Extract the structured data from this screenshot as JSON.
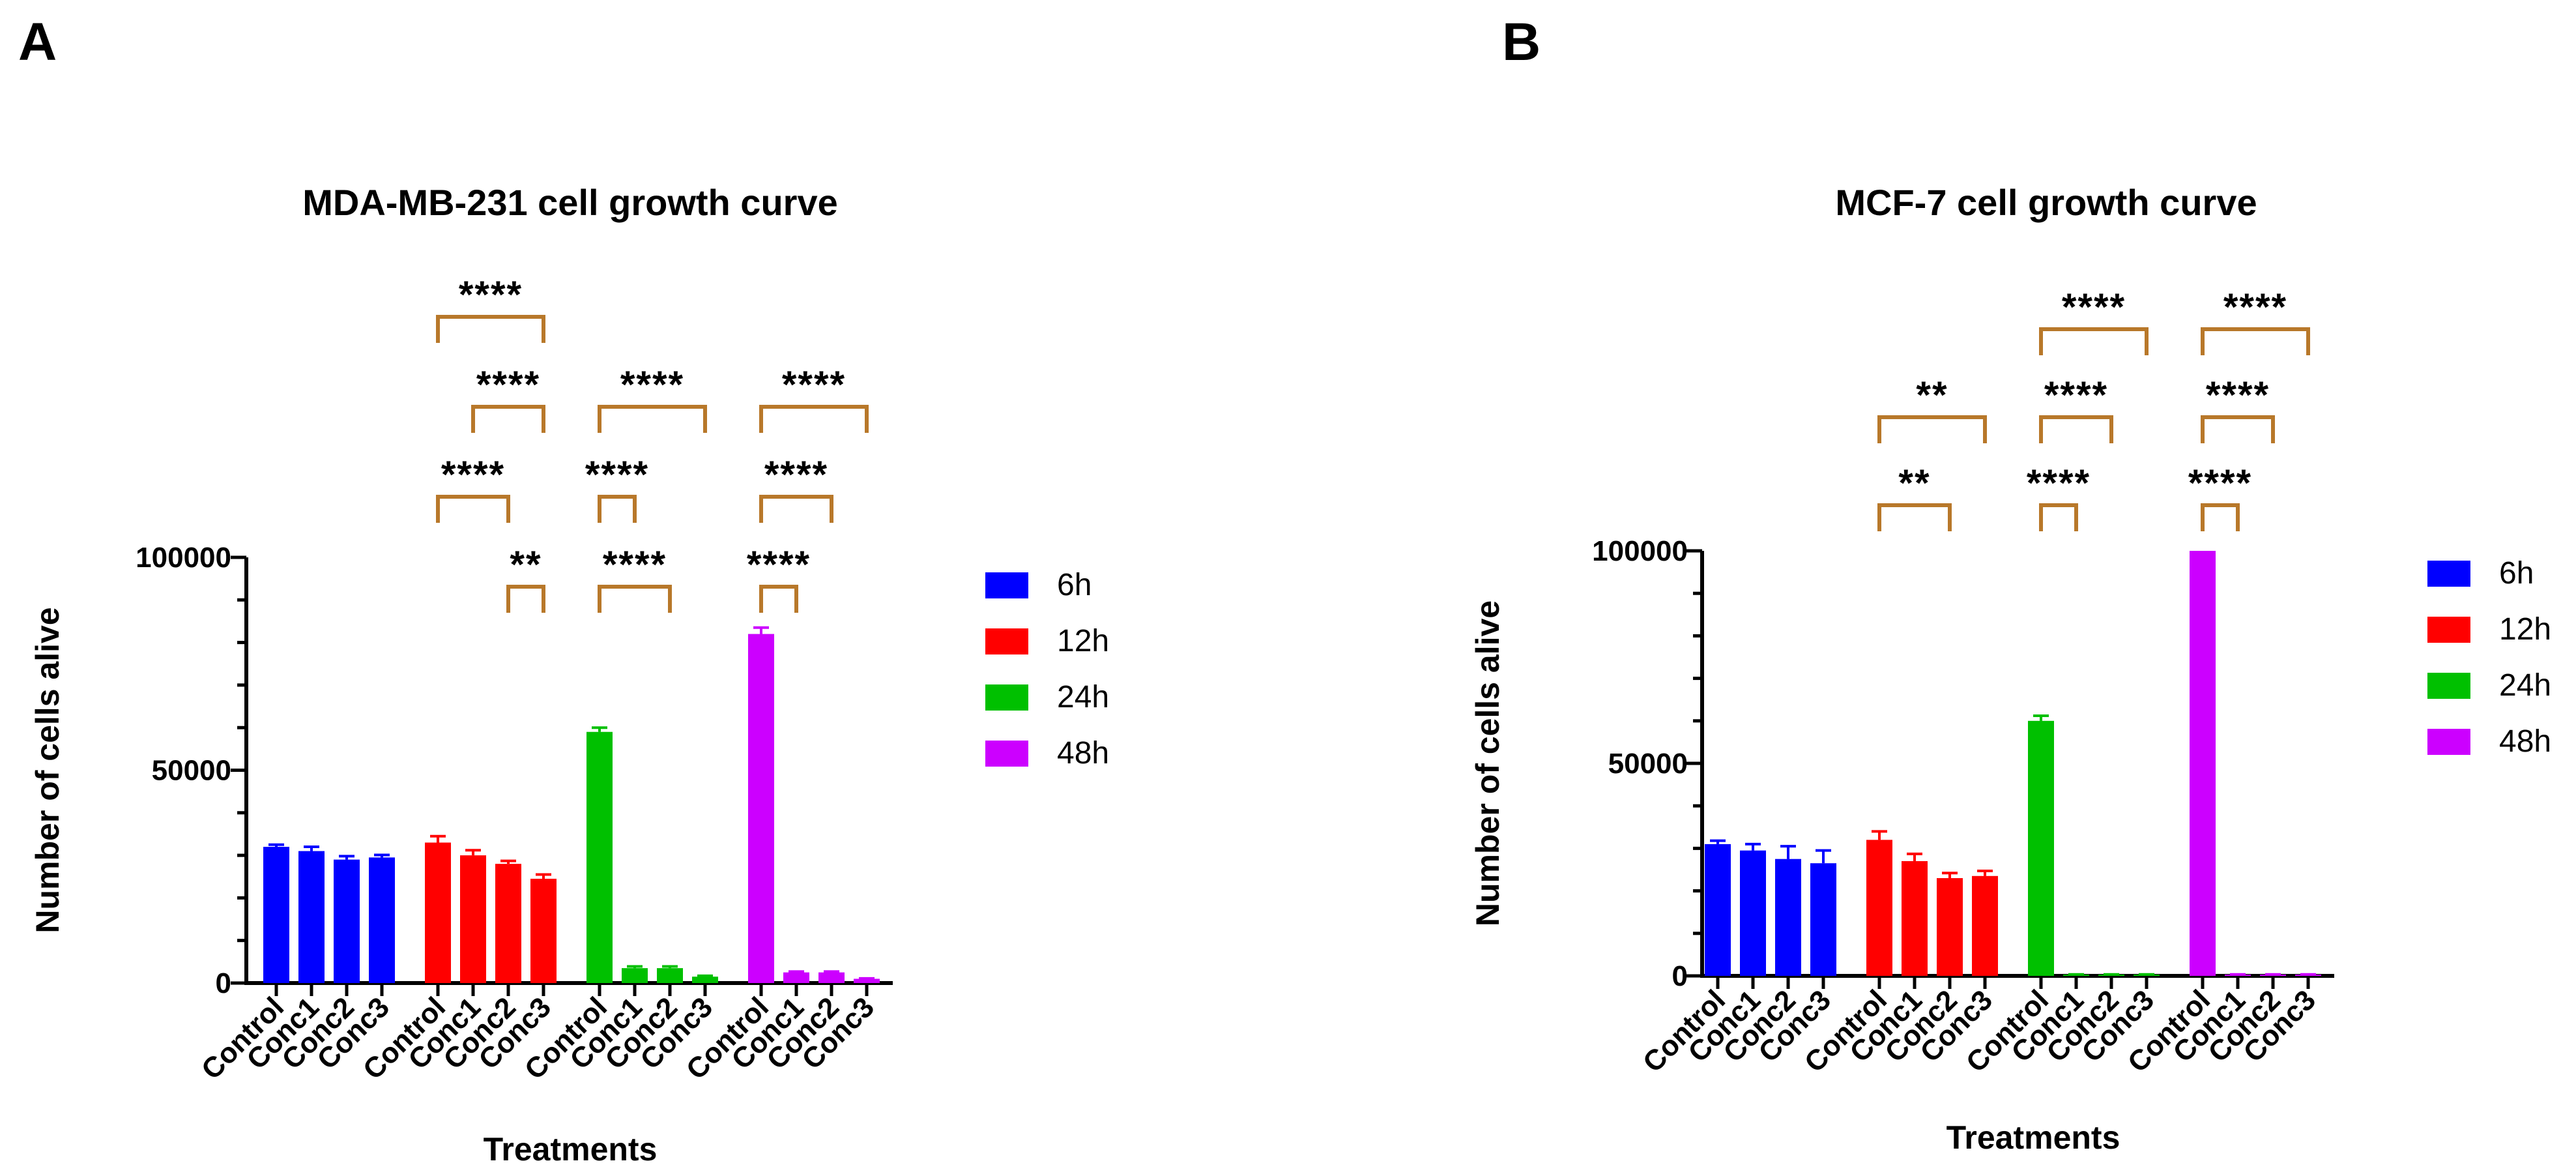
{
  "panels": [
    "A",
    "B"
  ],
  "chart_data": [
    {
      "type": "bar",
      "panel": "A",
      "title": "MDA-MB-231 cell growth curve",
      "xlabel": "Treatments",
      "ylabel": "Number of cells alive",
      "ylim": [
        0,
        100000
      ],
      "yticks": [
        0,
        50000,
        100000
      ],
      "ytick_labels": [
        "0",
        "50000",
        "100000"
      ],
      "categories": [
        "Control",
        "Conc1",
        "Conc2",
        "Conc3"
      ],
      "legend_position": "right",
      "series": [
        {
          "name": "6h",
          "color": "#0000ff",
          "values": [
            32000,
            31000,
            29000,
            29500
          ],
          "errors": [
            500,
            1000,
            800,
            600
          ]
        },
        {
          "name": "12h",
          "color": "#ff0000",
          "values": [
            33000,
            30000,
            28000,
            24500
          ],
          "errors": [
            1500,
            1200,
            700,
            1000
          ]
        },
        {
          "name": "24h",
          "color": "#00c000",
          "values": [
            59000,
            3500,
            3500,
            1500
          ],
          "errors": [
            1000,
            400,
            400,
            200
          ]
        },
        {
          "name": "48h",
          "color": "#cc00ff",
          "values": [
            82000,
            2500,
            2500,
            1000
          ],
          "errors": [
            1500,
            200,
            200,
            100
          ]
        }
      ],
      "significance": [
        {
          "group": 1,
          "from": 0,
          "to": 3,
          "level": 4,
          "label": "****"
        },
        {
          "group": 1,
          "from": 1,
          "to": 3,
          "level": 3,
          "label": "****"
        },
        {
          "group": 1,
          "from": 0,
          "to": 2,
          "level": 2,
          "label": "****"
        },
        {
          "group": 1,
          "from": 2,
          "to": 3,
          "level": 1,
          "label": "**"
        },
        {
          "group": 2,
          "from": 0,
          "to": 3,
          "level": 3,
          "label": "****"
        },
        {
          "group": 2,
          "from": 0,
          "to": 1,
          "level": 2,
          "label": "****"
        },
        {
          "group": 2,
          "from": 0,
          "to": 2,
          "level": 1,
          "label": "****"
        },
        {
          "group": 3,
          "from": 0,
          "to": 3,
          "level": 3,
          "label": "****"
        },
        {
          "group": 3,
          "from": 0,
          "to": 2,
          "level": 2,
          "label": "****"
        },
        {
          "group": 3,
          "from": 0,
          "to": 1,
          "level": 1,
          "label": "****"
        }
      ]
    },
    {
      "type": "bar",
      "panel": "B",
      "title": "MCF-7 cell growth curve",
      "xlabel": "Treatments",
      "ylabel": "Number of cells alive",
      "ylim": [
        0,
        100000
      ],
      "yticks": [
        0,
        50000,
        100000
      ],
      "ytick_labels": [
        "0",
        "50000",
        "100000"
      ],
      "categories": [
        "Control",
        "Conc1",
        "Conc2",
        "Conc3"
      ],
      "legend_position": "right",
      "series": [
        {
          "name": "6h",
          "color": "#0000ff",
          "values": [
            31000,
            29500,
            27500,
            26500
          ],
          "errors": [
            800,
            1500,
            3000,
            3000
          ]
        },
        {
          "name": "12h",
          "color": "#ff0000",
          "values": [
            32000,
            27000,
            23000,
            23500
          ],
          "errors": [
            2000,
            1700,
            1200,
            1200
          ]
        },
        {
          "name": "24h",
          "color": "#00c000",
          "values": [
            60000,
            300,
            300,
            300
          ],
          "errors": [
            1200,
            50,
            50,
            50
          ]
        },
        {
          "name": "48h",
          "color": "#cc00ff",
          "values": [
            100000,
            300,
            300,
            300
          ],
          "errors": [
            0,
            50,
            50,
            50
          ]
        }
      ],
      "significance": [
        {
          "group": 1,
          "from": 0,
          "to": 3,
          "level": 2,
          "label": "**"
        },
        {
          "group": 1,
          "from": 0,
          "to": 2,
          "level": 1,
          "label": "**"
        },
        {
          "group": 2,
          "from": 0,
          "to": 3,
          "level": 3,
          "label": "****"
        },
        {
          "group": 2,
          "from": 0,
          "to": 2,
          "level": 2,
          "label": "****"
        },
        {
          "group": 2,
          "from": 0,
          "to": 1,
          "level": 1,
          "label": "****"
        },
        {
          "group": 3,
          "from": 0,
          "to": 3,
          "level": 3,
          "label": "****"
        },
        {
          "group": 3,
          "from": 0,
          "to": 2,
          "level": 2,
          "label": "****"
        },
        {
          "group": 3,
          "from": 0,
          "to": 1,
          "level": 1,
          "label": "****"
        }
      ]
    }
  ],
  "colors": {
    "bracket": "#b8782a",
    "axis": "#000000"
  }
}
